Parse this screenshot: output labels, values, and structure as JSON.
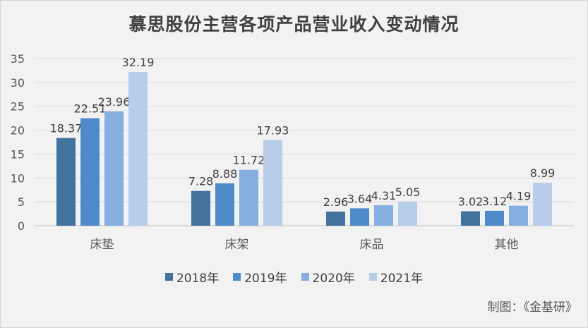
{
  "chart_data": {
    "type": "bar",
    "title": "慕思股份主营各项产品营业收入变动情况",
    "categories": [
      "床垫",
      "床架",
      "床品",
      "其他"
    ],
    "series": [
      {
        "name": "2018年",
        "color": "#44729f",
        "values": [
          18.37,
          7.28,
          2.96,
          3.02
        ]
      },
      {
        "name": "2019年",
        "color": "#4f8bc8",
        "values": [
          22.51,
          8.88,
          3.64,
          3.12
        ]
      },
      {
        "name": "2020年",
        "color": "#86aede",
        "values": [
          23.96,
          11.72,
          4.31,
          4.19
        ]
      },
      {
        "name": "2021年",
        "color": "#b8cde9",
        "values": [
          32.19,
          17.93,
          5.05,
          8.99
        ]
      }
    ],
    "ylim": [
      0,
      35
    ],
    "yticks": [
      "0",
      "5",
      "10",
      "15",
      "20",
      "25",
      "30",
      "35"
    ],
    "grid": true,
    "legend": "bottom",
    "xlabel": "",
    "ylabel": ""
  },
  "credit": "制图：《金基研》"
}
